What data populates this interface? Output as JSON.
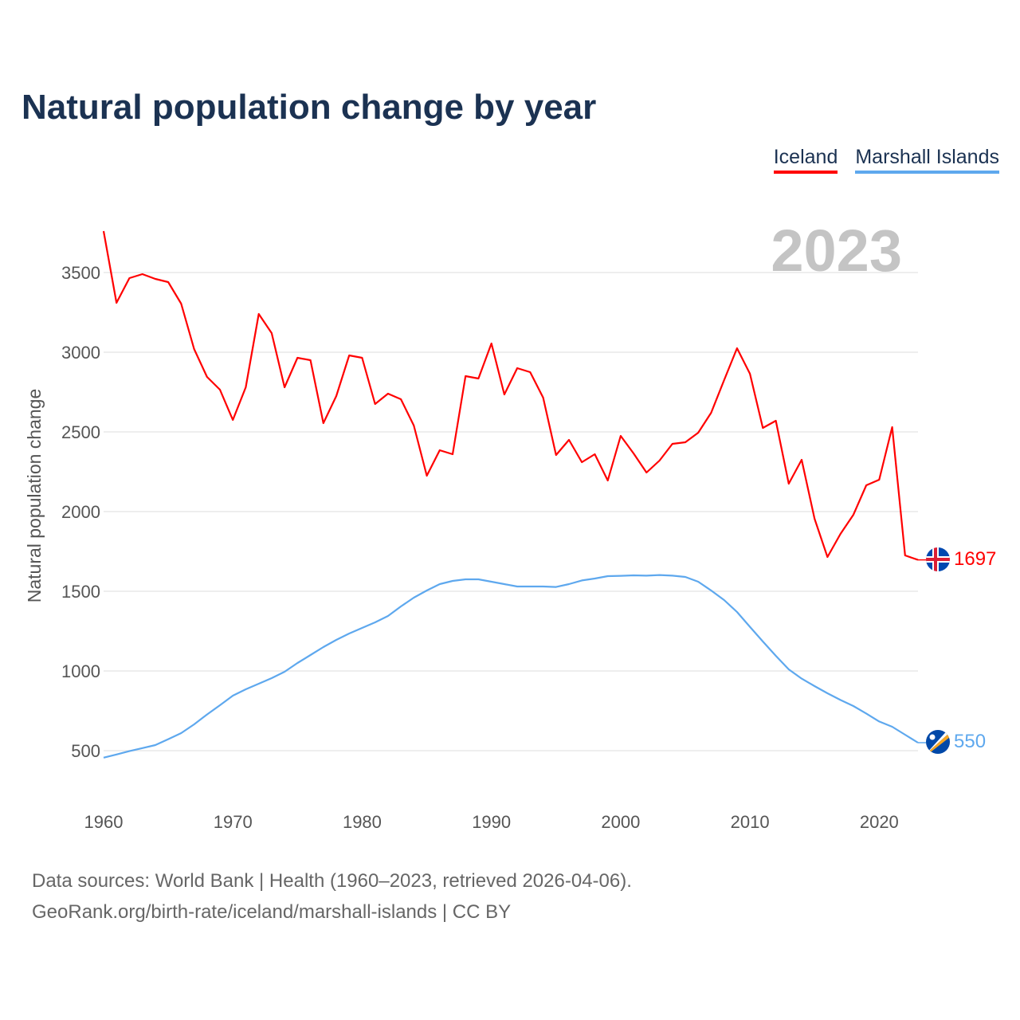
{
  "title": "Natural population change by year",
  "legend": [
    {
      "label": "Iceland",
      "color": "#ff0000"
    },
    {
      "label": "Marshall Islands",
      "color": "#5ea8ee"
    }
  ],
  "year_label": "2023",
  "footer": {
    "line1": "Data sources: World Bank | Health (1960–2023, retrieved 2026-04-06).",
    "line2": "GeoRank.org/birth-rate/iceland/marshall-islands | CC BY"
  },
  "chart_data": {
    "type": "line",
    "title": "Natural population change by year",
    "xlabel": "",
    "ylabel": "Natural population change",
    "xlim": [
      1960,
      2023
    ],
    "ylim": [
      250,
      3800
    ],
    "xticks": [
      1960,
      1970,
      1980,
      1990,
      2000,
      2010,
      2020
    ],
    "yticks": [
      500,
      1000,
      1500,
      2000,
      2500,
      3000,
      3500
    ],
    "grid": true,
    "legend_position": "top-right",
    "x": [
      1960,
      1961,
      1962,
      1963,
      1964,
      1965,
      1966,
      1967,
      1968,
      1969,
      1970,
      1971,
      1972,
      1973,
      1974,
      1975,
      1976,
      1977,
      1978,
      1979,
      1980,
      1981,
      1982,
      1983,
      1984,
      1985,
      1986,
      1987,
      1988,
      1989,
      1990,
      1991,
      1992,
      1993,
      1994,
      1995,
      1996,
      1997,
      1998,
      1999,
      2000,
      2001,
      2002,
      2003,
      2004,
      2005,
      2006,
      2007,
      2008,
      2009,
      2010,
      2011,
      2012,
      2013,
      2014,
      2015,
      2016,
      2017,
      2018,
      2019,
      2020,
      2021,
      2022,
      2023
    ],
    "series": [
      {
        "name": "Iceland",
        "color": "#ff0000",
        "end_label": "1697",
        "values": [
          3760,
          3310,
          3465,
          3490,
          3460,
          3440,
          3305,
          3020,
          2845,
          2765,
          2575,
          2780,
          3240,
          3120,
          2780,
          2965,
          2950,
          2555,
          2725,
          2980,
          2965,
          2675,
          2740,
          2705,
          2540,
          2225,
          2385,
          2360,
          2850,
          2835,
          3055,
          2735,
          2900,
          2875,
          2715,
          2355,
          2450,
          2310,
          2360,
          2195,
          2475,
          2365,
          2245,
          2320,
          2425,
          2435,
          2495,
          2620,
          2825,
          3025,
          2865,
          2525,
          2570,
          2175,
          2325,
          1955,
          1715,
          1860,
          1980,
          2165,
          2200,
          2530,
          1725,
          1697
        ]
      },
      {
        "name": "Marshall Islands",
        "color": "#5ea8ee",
        "end_label": "550",
        "values": [
          456,
          476,
          497,
          516,
          535,
          572,
          610,
          665,
          727,
          785,
          845,
          885,
          920,
          955,
          995,
          1050,
          1100,
          1150,
          1195,
          1235,
          1270,
          1305,
          1345,
          1405,
          1460,
          1505,
          1545,
          1565,
          1575,
          1575,
          1560,
          1545,
          1530,
          1530,
          1530,
          1527,
          1545,
          1568,
          1580,
          1595,
          1597,
          1600,
          1598,
          1602,
          1598,
          1590,
          1560,
          1505,
          1445,
          1370,
          1277,
          1185,
          1095,
          1010,
          952,
          905,
          860,
          818,
          780,
          733,
          683,
          650,
          600,
          550
        ]
      }
    ]
  }
}
